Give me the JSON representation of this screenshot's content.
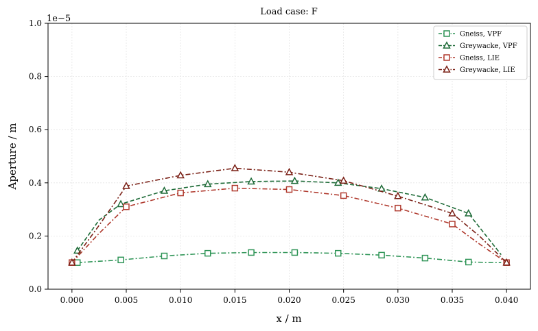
{
  "chart_data": {
    "type": "line",
    "title": "Load case: F",
    "xlabel": "x / m",
    "ylabel": "Aperture / m",
    "scale_label": "1e−5",
    "xlim": [
      -0.0022,
      0.0422
    ],
    "ylim": [
      0,
      1.0
    ],
    "xticks": [
      0.0,
      0.005,
      0.01,
      0.015,
      0.02,
      0.025,
      0.03,
      0.035,
      0.04
    ],
    "xtick_labels": [
      "0.000",
      "0.005",
      "0.010",
      "0.015",
      "0.020",
      "0.025",
      "0.030",
      "0.035",
      "0.040"
    ],
    "yticks": [
      0.0,
      0.2,
      0.4,
      0.6,
      0.8,
      1.0
    ],
    "ytick_labels": [
      "0.0",
      "0.2",
      "0.4",
      "0.6",
      "0.8",
      "1.0"
    ],
    "grid": true,
    "legend_position": "top-right",
    "series": [
      {
        "name": "Gneiss, VPF",
        "color": "#2e9456",
        "marker": "square",
        "linestyle": "dash-dot",
        "x": [
          0.0005,
          0.0045,
          0.0085,
          0.0125,
          0.0165,
          0.0205,
          0.0245,
          0.0285,
          0.0325,
          0.0365,
          0.0395
        ],
        "y": [
          0.1,
          0.11,
          0.125,
          0.135,
          0.138,
          0.138,
          0.135,
          0.128,
          0.117,
          0.102,
          0.1
        ],
        "marker_x": [
          0.0005,
          0.0045,
          0.0085,
          0.0125,
          0.0165,
          0.0205,
          0.0245,
          0.0285,
          0.0325,
          0.0365
        ],
        "marker_y": [
          0.1,
          0.11,
          0.125,
          0.135,
          0.138,
          0.138,
          0.135,
          0.128,
          0.117,
          0.102
        ]
      },
      {
        "name": "Greywacke, VPF",
        "color": "#1e6b38",
        "marker": "triangle",
        "linestyle": "dashed",
        "x": [
          0.0005,
          0.0025,
          0.0045,
          0.0085,
          0.0125,
          0.0165,
          0.0205,
          0.0245,
          0.0285,
          0.0325,
          0.0365,
          0.0395
        ],
        "y": [
          0.145,
          0.26,
          0.32,
          0.37,
          0.395,
          0.405,
          0.407,
          0.4,
          0.378,
          0.345,
          0.285,
          0.13
        ],
        "marker_x": [
          0.0005,
          0.0045,
          0.0085,
          0.0125,
          0.0165,
          0.0205,
          0.0245,
          0.0285,
          0.0325,
          0.0365
        ],
        "marker_y": [
          0.145,
          0.32,
          0.37,
          0.395,
          0.405,
          0.407,
          0.4,
          0.378,
          0.345,
          0.285
        ]
      },
      {
        "name": "Gneiss, LIE",
        "color": "#b03a2e",
        "marker": "square",
        "linestyle": "dash-dot",
        "x": [
          0.0,
          0.0025,
          0.005,
          0.01,
          0.015,
          0.02,
          0.025,
          0.03,
          0.035,
          0.0375,
          0.04
        ],
        "y": [
          0.1,
          0.21,
          0.31,
          0.362,
          0.38,
          0.375,
          0.352,
          0.305,
          0.245,
          0.17,
          0.1
        ],
        "marker_x": [
          0.0,
          0.005,
          0.01,
          0.015,
          0.02,
          0.025,
          0.03,
          0.035,
          0.04
        ],
        "marker_y": [
          0.1,
          0.31,
          0.362,
          0.38,
          0.375,
          0.352,
          0.305,
          0.245,
          0.1
        ]
      },
      {
        "name": "Greywacke, LIE",
        "color": "#7a2016",
        "marker": "triangle",
        "linestyle": "dash-dot",
        "x": [
          0.0,
          0.0025,
          0.005,
          0.01,
          0.015,
          0.02,
          0.025,
          0.03,
          0.035,
          0.0375,
          0.04
        ],
        "y": [
          0.1,
          0.24,
          0.388,
          0.428,
          0.455,
          0.44,
          0.408,
          0.35,
          0.285,
          0.2,
          0.1
        ],
        "marker_x": [
          0.0,
          0.005,
          0.01,
          0.015,
          0.02,
          0.025,
          0.03,
          0.035,
          0.04
        ],
        "marker_y": [
          0.1,
          0.388,
          0.428,
          0.455,
          0.44,
          0.408,
          0.35,
          0.285,
          0.1
        ]
      }
    ]
  }
}
